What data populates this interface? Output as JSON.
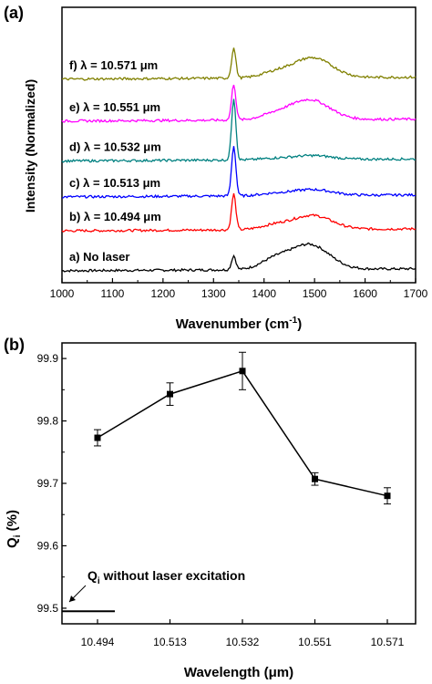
{
  "chart_data": [
    {
      "panel_label": "(a)",
      "type": "line",
      "xlabel": "Wavenumber (cm",
      "xlabel_sup": "-1",
      "xlabel_close": ")",
      "ylabel": "Intensity (Normalized)",
      "xlim": [
        1000,
        1700
      ],
      "x_ticks": [
        "1000",
        "1100",
        "1200",
        "1300",
        "1400",
        "1500",
        "1600",
        "1700"
      ],
      "series": [
        {
          "name": "a) No laser",
          "color": "#000000",
          "offset": 0.0,
          "sharp_peak": 0.35,
          "broad_peak": 0.62,
          "shoulder": 0.22,
          "peak_x": 1340,
          "broad_x": 1490
        },
        {
          "name": "b) λ = 10.494 μm",
          "color": "#ff0000",
          "offset": 1.0,
          "sharp_peak": 0.9,
          "broad_peak": 0.35,
          "shoulder": 0.1,
          "peak_x": 1340,
          "broad_x": 1495
        },
        {
          "name": "c) λ = 10.513 μm",
          "color": "#0000ff",
          "offset": 1.85,
          "sharp_peak": 1.25,
          "broad_peak": 0.15,
          "shoulder": 0.05,
          "peak_x": 1340,
          "broad_x": 1495
        },
        {
          "name": "d) λ = 10.532 μm",
          "color": "#008080",
          "offset": 2.75,
          "sharp_peak": 1.55,
          "broad_peak": 0.1,
          "shoulder": 0.03,
          "peak_x": 1340,
          "broad_x": 1495
        },
        {
          "name": "e) λ = 10.551 μm",
          "color": "#ff00ff",
          "offset": 3.75,
          "sharp_peak": 0.9,
          "broad_peak": 0.5,
          "shoulder": 0.12,
          "peak_x": 1340,
          "broad_x": 1490
        },
        {
          "name": "f) λ = 10.571 μm",
          "color": "#808000",
          "offset": 4.8,
          "sharp_peak": 0.75,
          "broad_peak": 0.5,
          "shoulder": 0.12,
          "peak_x": 1340,
          "broad_x": 1495
        }
      ],
      "ylim": [
        -0.3,
        6.6
      ]
    },
    {
      "panel_label": "(b)",
      "type": "line",
      "xlabel": "Wavelength (μm)",
      "ylabel": "Q",
      "ylabel_sub": "i",
      "ylabel_unit": " (%)",
      "categories": [
        "10.494",
        "10.513",
        "10.532",
        "10.551",
        "10.571"
      ],
      "values": [
        99.773,
        99.843,
        99.88,
        99.707,
        99.68
      ],
      "errors": [
        0.013,
        0.018,
        0.03,
        0.01,
        0.013
      ],
      "ylim": [
        99.5,
        99.9
      ],
      "y_ticks": [
        "99.5",
        "99.6",
        "99.7",
        "99.8",
        "99.9"
      ],
      "baseline_value": 99.495,
      "annotation": "Q",
      "annotation_sub": "i",
      "annotation_rest": " without laser excitation"
    }
  ]
}
